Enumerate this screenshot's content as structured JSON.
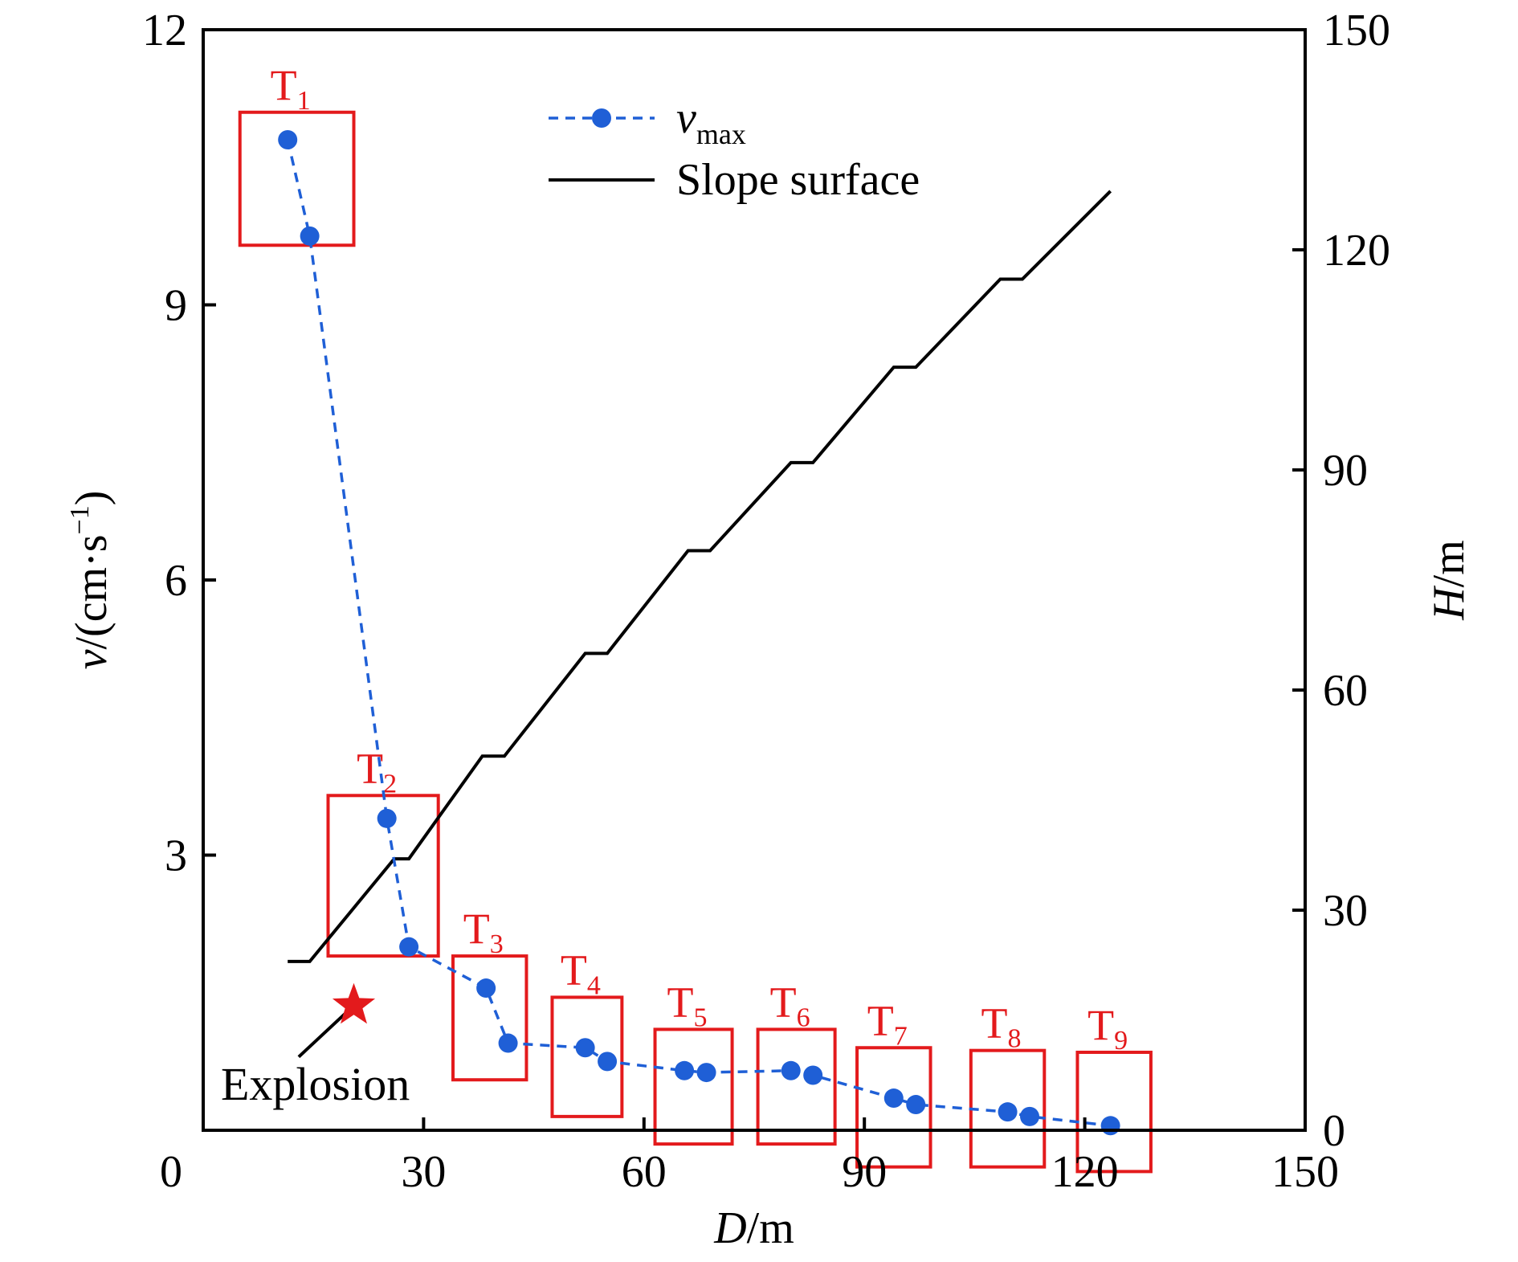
{
  "chart_data": {
    "type": "line",
    "x_axis": {
      "label_italic": "D",
      "label_unit": "/m",
      "lim": [
        0,
        150
      ],
      "ticks": [
        0,
        30,
        60,
        90,
        120,
        150
      ],
      "tick_labels": [
        "0",
        "30",
        "60",
        "90",
        "120",
        "150"
      ]
    },
    "y_left": {
      "label_italic": "v",
      "label_unit": "/(cm·s",
      "label_sup": "−1",
      "label_close": ")",
      "lim": [
        0,
        12
      ],
      "ticks": [
        3,
        6,
        9,
        12
      ],
      "tick_labels": [
        "3",
        "6",
        "9",
        "12"
      ]
    },
    "y_right": {
      "label_italic": "H",
      "label_unit": "/m",
      "lim": [
        0,
        150
      ],
      "ticks": [
        0,
        30,
        60,
        90,
        120,
        150
      ],
      "tick_labels": [
        "0",
        "30",
        "60",
        "90",
        "120",
        "150"
      ]
    },
    "series": [
      {
        "name_italic": "v",
        "name_sub": "max",
        "axis": "left",
        "style": "dashed-markers",
        "color": "#1f5fd6",
        "x": [
          11.5,
          14.5,
          25,
          28,
          38.5,
          41.5,
          52,
          55,
          65.5,
          68.5,
          80,
          83,
          94,
          97,
          109.5,
          112.5,
          123.5
        ],
        "y": [
          10.8,
          9.75,
          3.4,
          2.0,
          1.55,
          0.95,
          0.9,
          0.75,
          0.65,
          0.63,
          0.65,
          0.6,
          0.35,
          0.28,
          0.2,
          0.15,
          0.05
        ]
      },
      {
        "name": "Slope surface",
        "axis": "right",
        "style": "solid",
        "color": "#000000",
        "x": [
          11.5,
          14.5,
          26,
          28,
          38,
          41,
          52,
          55,
          66,
          69,
          80,
          83,
          94,
          97,
          108.5,
          111.5,
          123.5
        ],
        "y": [
          23,
          23,
          37,
          37,
          51,
          51,
          65,
          65,
          79,
          79,
          91,
          91,
          104,
          104,
          116,
          116,
          128
        ]
      }
    ],
    "explosion_line": {
      "x": [
        13,
        20.5
      ],
      "y": [
        10,
        17
      ]
    },
    "explosion": {
      "label": "Explosion",
      "x": 20.5,
      "y_right": 17,
      "color": "#e31a1c"
    },
    "groups": [
      {
        "letter": "T",
        "sub": "1",
        "x": [
          5,
          20.5
        ],
        "y": [
          9.65,
          11.1
        ]
      },
      {
        "letter": "T",
        "sub": "2",
        "x": [
          17,
          32
        ],
        "y": [
          1.9,
          3.65
        ]
      },
      {
        "letter": "T",
        "sub": "3",
        "x": [
          34,
          44
        ],
        "y": [
          0.55,
          1.9
        ]
      },
      {
        "letter": "T",
        "sub": "4",
        "x": [
          47.5,
          57
        ],
        "y": [
          0.15,
          1.45
        ]
      },
      {
        "letter": "T",
        "sub": "5",
        "x": [
          61.5,
          72
        ],
        "y": [
          -0.15,
          1.1
        ]
      },
      {
        "letter": "T",
        "sub": "6",
        "x": [
          75.5,
          86
        ],
        "y": [
          -0.15,
          1.1
        ]
      },
      {
        "letter": "T",
        "sub": "7",
        "x": [
          89,
          99
        ],
        "y": [
          -0.4,
          0.9
        ]
      },
      {
        "letter": "T",
        "sub": "8",
        "x": [
          104.5,
          114.5
        ],
        "y": [
          -0.4,
          0.87
        ]
      },
      {
        "letter": "T",
        "sub": "9",
        "x": [
          119,
          129
        ],
        "y": [
          -0.45,
          0.85
        ]
      }
    ],
    "legend": {
      "position": "top-center",
      "entries": [
        {
          "italic": "v",
          "sub": "max"
        },
        {
          "text": "Slope surface"
        }
      ]
    },
    "colors": {
      "box": "#e31a1c",
      "vmax": "#1f5fd6",
      "slope": "#000000"
    }
  }
}
